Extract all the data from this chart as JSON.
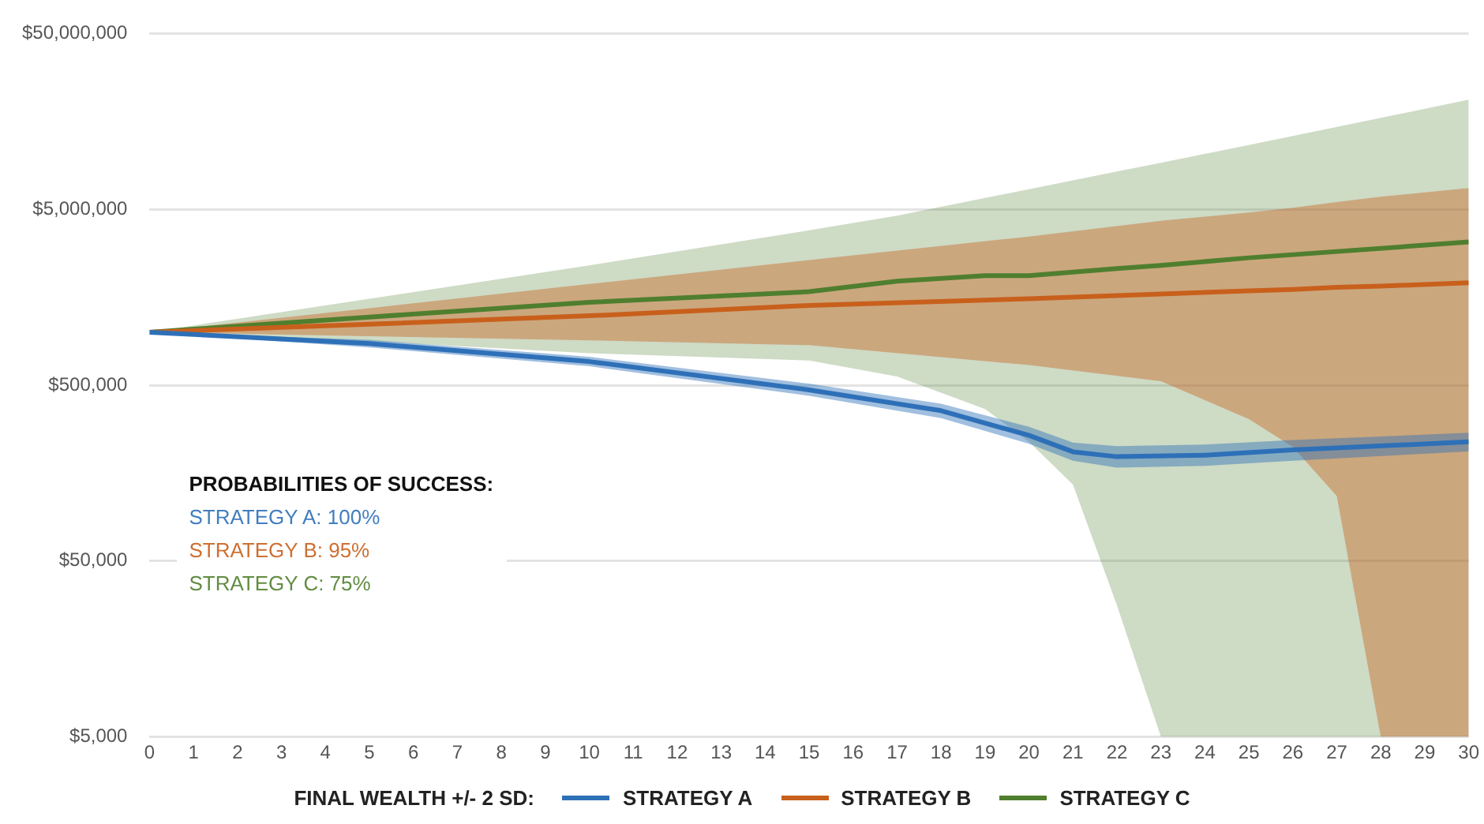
{
  "chart_data": {
    "type": "line",
    "legend": "bottom",
    "legend_title": "FINAL WEALTH +/- 2 SD:",
    "log": "y",
    "grid": "y",
    "marker": "none",
    "line_style": "solid",
    "xlim": [
      0,
      30
    ],
    "xticks": [
      0,
      1,
      2,
      3,
      4,
      5,
      6,
      7,
      8,
      9,
      10,
      11,
      12,
      13,
      14,
      15,
      16,
      17,
      18,
      19,
      20,
      21,
      22,
      23,
      24,
      25,
      26,
      27,
      28,
      29,
      30
    ],
    "ylim": [
      5000,
      50000000
    ],
    "yticks": [
      {
        "value": 5000,
        "label": "$5,000"
      },
      {
        "value": 50000,
        "label": "$50,000"
      },
      {
        "value": 500000,
        "label": "$500,000"
      },
      {
        "value": 5000000,
        "label": "$5,000,000"
      },
      {
        "value": 50000000,
        "label": "$50,000,000"
      }
    ],
    "annotations": [
      "PROBABILITIES OF SUCCESS:",
      "STRATEGY A: 100%",
      "STRATEGY B: 95%",
      "STRATEGY C: 75%"
    ],
    "series": [
      {
        "name": "STRATEGY A",
        "color": "#2e70b8",
        "x": [
          0,
          5,
          10,
          15,
          18,
          20,
          21,
          22,
          24,
          26,
          30
        ],
        "values": [
          1000000,
          863000,
          681000,
          470000,
          358000,
          259000,
          209000,
          196000,
          200000,
          214000,
          238000
        ],
        "lower": [
          1000000,
          820000,
          640000,
          435000,
          325000,
          232000,
          186000,
          170000,
          174000,
          186000,
          210000
        ],
        "upper": [
          1000000,
          905000,
          725000,
          510000,
          392000,
          290000,
          236000,
          225000,
          230000,
          244000,
          268000
        ]
      },
      {
        "name": "STRATEGY B",
        "color": "#c8601c",
        "x": [
          0,
          5,
          10,
          15,
          20,
          23,
          25,
          26,
          27,
          28,
          30
        ],
        "values": [
          1000000,
          1110000,
          1240000,
          1420000,
          1550000,
          1650000,
          1720000,
          1750000,
          1800000,
          1830000,
          1910000
        ],
        "lower": [
          1000000,
          950000,
          900000,
          844000,
          650000,
          526000,
          321000,
          223000,
          117000,
          5000,
          5000
        ],
        "upper": [
          1000000,
          1370000,
          1880000,
          2570000,
          3500000,
          4300000,
          4800000,
          5100000,
          5500000,
          5900000,
          6600000
        ]
      },
      {
        "name": "STRATEGY C",
        "color": "#4f7f2e",
        "x": [
          0,
          5,
          10,
          15,
          17,
          19,
          20,
          21,
          22,
          23,
          25,
          30
        ],
        "values": [
          1000000,
          1220000,
          1480000,
          1700000,
          1950000,
          2100000,
          2100000,
          2200000,
          2300000,
          2400000,
          2650000,
          3260000
        ],
        "lower": [
          1000000,
          890000,
          760000,
          690000,
          560000,
          366000,
          238000,
          136000,
          28000,
          5000,
          5000,
          5000
        ],
        "upper": [
          1000000,
          1550000,
          2400000,
          3800000,
          4600000,
          5800000,
          6500000,
          7300000,
          8200000,
          9200000,
          11600000,
          21000000
        ]
      }
    ]
  }
}
